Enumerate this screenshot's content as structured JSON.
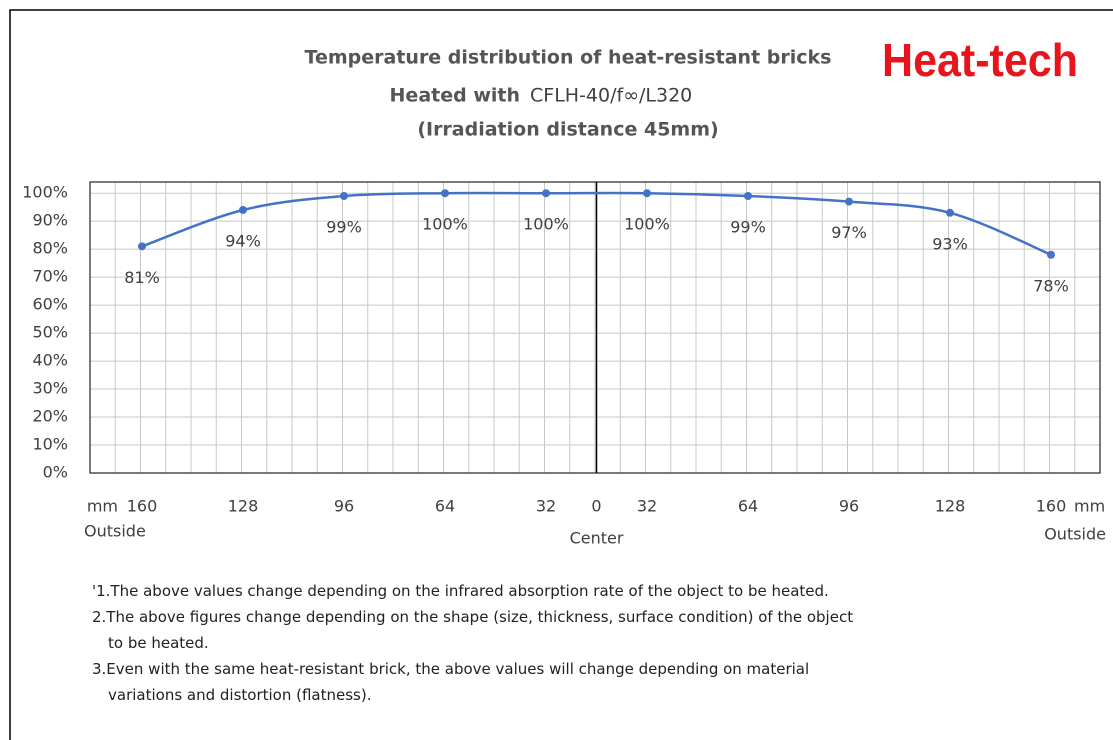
{
  "chart_data": {
    "type": "line",
    "title": "Temperature distribution of heat-resistant bricks",
    "subtitle_prefix": "Heated with",
    "subtitle_model": "CFLH-40/f∞/L320",
    "subtitle_2": "(Irradiation distance 45mm)",
    "brand": "Heat-tech",
    "categories": [
      "160",
      "128",
      "96",
      "64",
      "32",
      "32",
      "64",
      "96",
      "128",
      "160"
    ],
    "center_tick": "0",
    "center_label": "Center",
    "x_unit_left": "mm",
    "x_unit_right": "mm",
    "outside_left": "Outside",
    "outside_right": "Outside",
    "series": [
      {
        "name": "Temperature",
        "color": "#4472c4",
        "values": [
          81,
          94,
          99,
          100,
          100,
          100,
          99,
          97,
          93,
          78
        ],
        "value_labels": [
          "81%",
          "94%",
          "99%",
          "100%",
          "100%",
          "100%",
          "99%",
          "97%",
          "93%",
          "78%"
        ]
      }
    ],
    "ylim": [
      0,
      104
    ],
    "yticks": [
      {
        "value": 0,
        "label": "0%"
      },
      {
        "value": 10,
        "label": "10%"
      },
      {
        "value": 20,
        "label": "20%"
      },
      {
        "value": 30,
        "label": "30%"
      },
      {
        "value": 40,
        "label": "40%"
      },
      {
        "value": 50,
        "label": "50%"
      },
      {
        "value": 60,
        "label": "60%"
      },
      {
        "value": 70,
        "label": "70%"
      },
      {
        "value": 80,
        "label": "80%"
      },
      {
        "value": 90,
        "label": "90%"
      },
      {
        "value": 100,
        "label": "100%"
      }
    ],
    "grid": true,
    "notes": [
      [
        "'1.The above values change depending on the infrared absorption rate of the object to be heated."
      ],
      [
        "2.The above figures change depending on the shape (size, thickness, surface condition) of the object",
        "to be heated."
      ],
      [
        "3.Even with the same heat-resistant brick, the above values will change depending on material",
        "variations and distortion (flatness)."
      ]
    ]
  }
}
